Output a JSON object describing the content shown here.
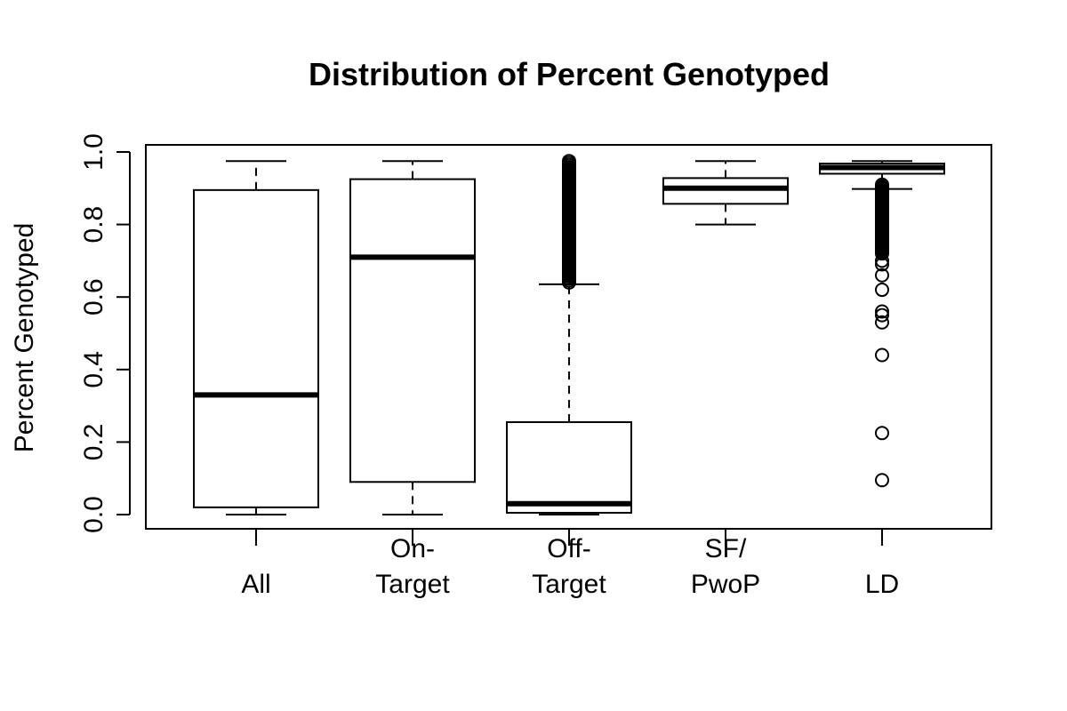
{
  "chart_data": {
    "type": "box",
    "title": "Distribution of Percent Genotyped",
    "xlabel": "",
    "ylabel": "Percent Genotyped",
    "ylim": [
      0.0,
      1.0
    ],
    "yticks": [
      "0.0",
      "0.2",
      "0.4",
      "0.6",
      "0.8",
      "1.0"
    ],
    "grid": false,
    "categories": [
      [
        "All"
      ],
      [
        "On-",
        "Target"
      ],
      [
        "Off-",
        "Target"
      ],
      [
        "SF/",
        "PwoP"
      ],
      [
        "LD"
      ]
    ],
    "boxes": [
      {
        "whisker_low": 0.0,
        "q1": 0.02,
        "median": 0.33,
        "q3": 0.895,
        "whisker_high": 0.975,
        "outliers": []
      },
      {
        "whisker_low": 0.0,
        "q1": 0.09,
        "median": 0.71,
        "q3": 0.925,
        "whisker_high": 0.975,
        "outliers": []
      },
      {
        "whisker_low": 0.0,
        "q1": 0.005,
        "median": 0.03,
        "q3": 0.255,
        "whisker_high": 0.635,
        "outliers_dense_range": [
          0.64,
          0.975
        ],
        "outliers": []
      },
      {
        "whisker_low": 0.8,
        "q1": 0.857,
        "median": 0.9,
        "q3": 0.928,
        "whisker_high": 0.975,
        "outliers": []
      },
      {
        "whisker_low": 0.898,
        "q1": 0.94,
        "median": 0.957,
        "q3": 0.968,
        "whisker_high": 0.975,
        "outliers_dense_range": [
          0.72,
          0.91
        ],
        "outliers": [
          0.7,
          0.69,
          0.66,
          0.62,
          0.56,
          0.55,
          0.53,
          0.44,
          0.225,
          0.095
        ]
      }
    ]
  }
}
